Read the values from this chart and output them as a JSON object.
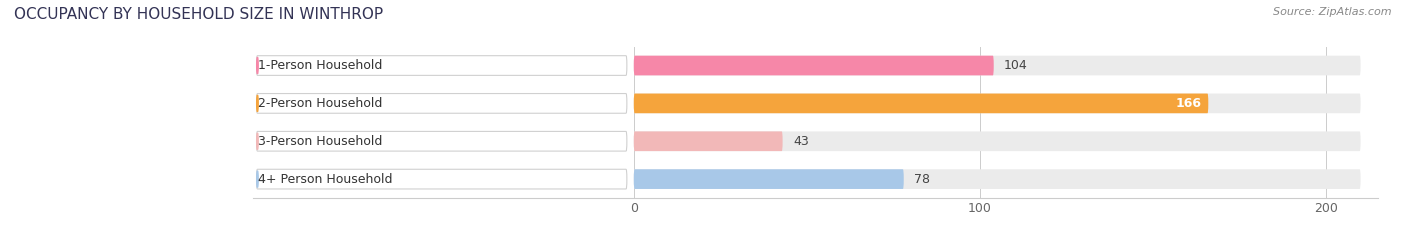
{
  "title": "OCCUPANCY BY HOUSEHOLD SIZE IN WINTHROP",
  "source": "Source: ZipAtlas.com",
  "categories": [
    "1-Person Household",
    "2-Person Household",
    "3-Person Household",
    "4+ Person Household"
  ],
  "values": [
    104,
    166,
    43,
    78
  ],
  "bar_colors": [
    "#F687A8",
    "#F5A43C",
    "#F2B8B8",
    "#A8C8E8"
  ],
  "circle_colors": [
    "#F687A8",
    "#F5A43C",
    "#F2B8B8",
    "#A8C8E8"
  ],
  "label_colors": [
    "#444444",
    "#ffffff",
    "#444444",
    "#444444"
  ],
  "xlim": [
    -110,
    215
  ],
  "data_xlim": [
    0,
    200
  ],
  "xticks": [
    0,
    100,
    200
  ],
  "background_color": "#ffffff",
  "bar_bg_color": "#ebebeb",
  "title_fontsize": 11,
  "tick_fontsize": 9,
  "label_fontsize": 9,
  "value_fontsize": 9
}
